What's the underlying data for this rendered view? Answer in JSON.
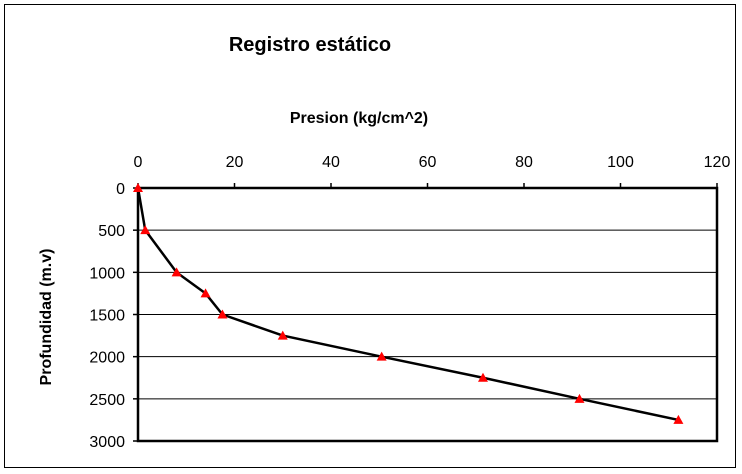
{
  "chart_data": {
    "type": "line",
    "title": "Registro estático",
    "xlabel": "Presion (kg/cm^2)",
    "ylabel": "Profundidad (m.v)",
    "x_axis_position": "top",
    "y_axis_inverted": true,
    "xlim": [
      0,
      120
    ],
    "ylim": [
      0,
      3000
    ],
    "xticks": [
      0,
      20,
      40,
      60,
      80,
      100,
      120
    ],
    "yticks": [
      0,
      500,
      1000,
      1500,
      2000,
      2500,
      3000
    ],
    "grid": "horizontal",
    "line_color": "#000000",
    "marker": "triangle",
    "marker_color": "#ff0000",
    "series": [
      {
        "points": [
          {
            "x": 0,
            "y": 0
          },
          {
            "x": 1.5,
            "y": 500
          },
          {
            "x": 8,
            "y": 1000
          },
          {
            "x": 14,
            "y": 1250
          },
          {
            "x": 17.5,
            "y": 1500
          },
          {
            "x": 30,
            "y": 1750
          },
          {
            "x": 50.5,
            "y": 2000
          },
          {
            "x": 71.5,
            "y": 2250
          },
          {
            "x": 91.5,
            "y": 2500
          },
          {
            "x": 112,
            "y": 2750
          }
        ]
      }
    ]
  }
}
